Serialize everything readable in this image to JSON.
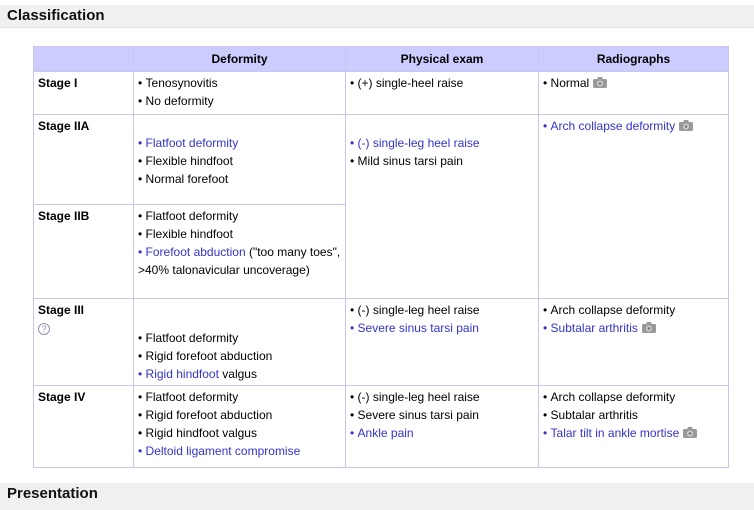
{
  "colors": {
    "lavender": "#ccccff",
    "border": "#c6c6f0",
    "link": "#3333cc",
    "band": "#f0f0f0",
    "camera": "#999999"
  },
  "icons": {
    "question": "?"
  },
  "sections": {
    "current_title": "Classification",
    "next_title": "Presentation"
  },
  "table": {
    "headers": [
      "",
      "Deformity",
      "Physical exam",
      "Radiographs"
    ],
    "rows": [
      {
        "stage": "Stage I",
        "deformity": [
          [
            {
              "t": "Tenosynovitis"
            }
          ],
          [
            {
              "t": "No deformity"
            }
          ]
        ],
        "exam": [
          [
            {
              "t": "(+) single-heel raise"
            }
          ]
        ],
        "radio": [
          [
            {
              "t": "Normal"
            },
            {
              "icon": "camera-icon"
            }
          ]
        ]
      },
      {
        "stage": "Stage IIA",
        "deformity": [
          [
            {
              "t": "Flatfoot deformity",
              "link": true
            }
          ],
          [
            {
              "t": "Flexible hindfoot"
            }
          ],
          [
            {
              "t": "Normal forefoot"
            }
          ]
        ],
        "exam": [
          [
            {
              "t": "(-) single-leg heel raise",
              "link": true
            }
          ],
          [
            {
              "t": "Mild sinus tarsi pain"
            }
          ]
        ],
        "radio": [
          [
            {
              "t": "Arch collapse deformity",
              "link": true
            },
            {
              "icon": "camera-icon"
            }
          ]
        ]
      },
      {
        "stage": "Stage IIB",
        "deformity": [
          [
            {
              "t": "Flatfoot deformity"
            }
          ],
          [
            {
              "t": "Flexible hindfoot"
            }
          ],
          [
            {
              "t": "Forefoot abduction",
              "link": true
            },
            {
              "t": " (\"too many toes\", >40% talonavicular uncoverage)"
            }
          ]
        ]
      },
      {
        "stage": "Stage III",
        "has_question_icon": true,
        "deformity": [
          [
            {
              "t": "Flatfoot deformity"
            }
          ],
          [
            {
              "t": "Rigid forefoot abduction"
            }
          ],
          [
            {
              "t": "Rigid hindfoot",
              "link": true
            },
            {
              "t": " valgus"
            }
          ]
        ],
        "exam": [
          [
            {
              "t": "(-) single-leg heel raise"
            }
          ],
          [
            {
              "t": "Severe sinus tarsi pain",
              "link": true
            }
          ]
        ],
        "radio": [
          [
            {
              "t": "Arch collapse deformity"
            }
          ],
          [
            {
              "t": "Subtalar arthritis",
              "link": true
            },
            {
              "icon": "camera-icon"
            }
          ]
        ]
      },
      {
        "stage": "Stage IV",
        "deformity": [
          [
            {
              "t": "Flatfoot deformity"
            }
          ],
          [
            {
              "t": "Rigid forefoot abduction"
            }
          ],
          [
            {
              "t": "Rigid hindfoot valgus"
            }
          ],
          [
            {
              "t": "Deltoid ligament compromise",
              "link": true
            }
          ]
        ],
        "exam": [
          [
            {
              "t": "(-) single-leg heel raise"
            }
          ],
          [
            {
              "t": "Severe sinus tarsi pain"
            }
          ],
          [
            {
              "t": "Ankle pain",
              "link": true
            }
          ]
        ],
        "radio": [
          [
            {
              "t": "Arch collapse deformity"
            }
          ],
          [
            {
              "t": "Subtalar arthritis"
            }
          ],
          [
            {
              "t": "Talar tilt in ankle mortise",
              "link": true
            },
            {
              "icon": "camera-icon"
            }
          ]
        ]
      }
    ]
  }
}
